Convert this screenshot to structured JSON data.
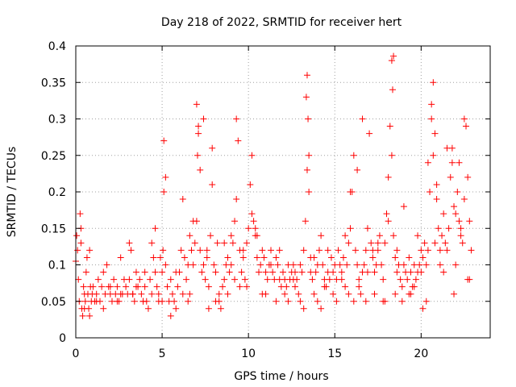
{
  "chart_data": {
    "type": "scatter",
    "title": "Day 218 of 2022, SRMTID for receiver hert",
    "xlabel": "GPS time / hours",
    "ylabel": "SRMTID / TECUs",
    "xlim": [
      0,
      24
    ],
    "ylim": [
      0,
      0.4
    ],
    "x_ticks": [
      0,
      5,
      10,
      15,
      20
    ],
    "x_tick_labels": [
      "0",
      "5",
      "10",
      "15",
      "20"
    ],
    "y_ticks": [
      0,
      0.05,
      0.1,
      0.15,
      0.2,
      0.25,
      0.3,
      0.35,
      0.4
    ],
    "y_tick_labels": [
      "0",
      "0.05",
      "0.1",
      "0.15",
      "0.2",
      "0.25",
      "0.3",
      "0.35",
      "0.4"
    ],
    "grid": true,
    "marker": "plus",
    "color": "#ff0000",
    "series": [
      {
        "x": [
          0.0,
          0.05,
          0.1,
          0.15,
          0.2,
          0.25,
          0.3,
          0.35,
          0.4,
          0.45,
          0.5,
          0.55,
          0.6,
          0.65,
          0.7,
          0.75,
          0.8,
          0.85,
          0.9,
          0.95,
          1.0,
          1.1,
          1.2,
          1.3,
          1.4,
          1.5,
          1.6,
          1.7,
          1.8,
          1.9,
          2.0,
          2.1,
          2.2,
          2.3,
          2.4,
          2.5,
          2.6,
          2.7,
          2.8,
          2.9,
          3.0,
          3.1,
          3.2,
          3.3,
          3.4,
          3.5,
          3.6,
          3.7,
          3.8,
          3.9,
          4.0,
          4.1,
          4.2,
          4.3,
          4.4,
          4.5,
          4.6,
          4.7,
          4.8,
          4.9,
          5.0,
          5.05,
          5.1,
          5.2,
          5.3,
          5.4,
          5.5,
          5.6,
          5.7,
          5.8,
          5.9,
          6.0,
          6.1,
          6.2,
          6.3,
          6.4,
          6.5,
          6.6,
          6.7,
          6.8,
          6.9,
          7.0,
          7.05,
          7.1,
          7.2,
          7.3,
          7.4,
          7.5,
          7.6,
          7.7,
          7.8,
          7.9,
          8.0,
          8.1,
          8.2,
          8.3,
          8.4,
          8.5,
          8.6,
          8.7,
          8.8,
          8.9,
          9.0,
          9.1,
          9.2,
          9.3,
          9.4,
          9.5,
          9.6,
          9.7,
          9.8,
          9.9,
          10.0,
          10.1,
          10.2,
          10.3,
          10.4,
          10.5,
          10.6,
          10.7,
          10.8,
          10.9,
          11.0,
          11.1,
          11.2,
          11.3,
          11.4,
          11.5,
          11.6,
          11.7,
          11.8,
          11.9,
          12.0,
          12.1,
          12.2,
          12.3,
          12.4,
          12.5,
          12.6,
          12.7,
          12.8,
          12.9,
          13.0,
          13.1,
          13.2,
          13.3,
          13.35,
          13.4,
          13.5,
          13.6,
          13.7,
          13.8,
          13.9,
          14.0,
          14.1,
          14.2,
          14.3,
          14.4,
          14.5,
          14.6,
          14.7,
          14.8,
          14.9,
          15.0,
          15.1,
          15.2,
          15.3,
          15.4,
          15.5,
          15.6,
          15.7,
          15.8,
          15.9,
          16.0,
          16.1,
          16.2,
          16.3,
          16.4,
          16.5,
          16.6,
          16.7,
          16.8,
          16.9,
          17.0,
          17.1,
          17.2,
          17.3,
          17.4,
          17.5,
          17.6,
          17.7,
          17.8,
          17.9,
          18.0,
          18.1,
          18.2,
          18.3,
          18.35,
          18.4,
          18.5,
          18.6,
          18.7,
          18.8,
          18.9,
          19.0,
          19.1,
          19.2,
          19.3,
          19.4,
          19.5,
          19.6,
          19.7,
          19.8,
          19.9,
          20.0,
          20.1,
          20.2,
          20.3,
          20.4,
          20.5,
          20.6,
          20.7,
          20.8,
          20.9,
          21.0,
          21.1,
          21.2,
          21.3,
          21.4,
          21.5,
          21.6,
          21.7,
          21.8,
          21.9,
          22.0,
          22.1,
          22.2,
          22.3,
          22.4,
          22.5,
          22.6,
          22.7,
          22.8,
          22.9,
          0.3,
          0.5,
          1.2,
          2.0,
          2.6,
          3.1,
          3.5,
          4.0,
          4.4,
          4.6,
          5.0,
          5.1,
          5.2,
          5.8,
          6.5,
          6.8,
          7.0,
          7.1,
          7.4,
          7.6,
          7.9,
          8.3,
          8.6,
          9.0,
          9.3,
          9.5,
          9.7,
          10.2,
          10.4,
          10.8,
          11.3,
          11.8,
          12.3,
          12.7,
          13.2,
          13.4,
          13.45,
          13.5,
          13.8,
          14.2,
          14.6,
          15.1,
          15.6,
          15.9,
          16.1,
          16.3,
          16.6,
          16.9,
          17.2,
          17.5,
          17.8,
          18.1,
          18.3,
          18.4,
          18.6,
          19.0,
          19.4,
          19.8,
          20.1,
          20.4,
          20.6,
          20.7,
          20.9,
          21.1,
          21.5,
          21.8,
          22.0,
          22.2,
          22.5,
          22.8,
          0.8,
          1.6,
          2.4,
          3.3,
          3.9,
          4.8,
          5.5,
          6.2,
          6.6,
          7.2,
          7.7,
          8.1,
          8.8,
          9.2,
          9.9,
          10.5,
          11.0,
          11.6,
          12.1,
          12.6,
          13.0,
          13.6,
          14.0,
          14.4,
          14.9,
          15.4,
          15.8,
          16.4,
          16.8,
          17.3,
          17.9,
          18.5,
          18.9,
          19.3,
          19.6,
          20.0,
          20.3,
          20.8,
          21.3,
          21.9,
          22.3,
          22.7
        ],
        "y": [
          0.105,
          0.14,
          0.12,
          0.08,
          0.05,
          0.17,
          0.13,
          0.04,
          0.03,
          0.07,
          0.06,
          0.05,
          0.09,
          0.11,
          0.06,
          0.04,
          0.12,
          0.07,
          0.05,
          0.06,
          0.07,
          0.05,
          0.06,
          0.08,
          0.05,
          0.07,
          0.09,
          0.06,
          0.1,
          0.07,
          0.06,
          0.05,
          0.08,
          0.06,
          0.07,
          0.05,
          0.11,
          0.06,
          0.08,
          0.07,
          0.06,
          0.08,
          0.12,
          0.06,
          0.05,
          0.09,
          0.07,
          0.08,
          0.06,
          0.05,
          0.07,
          0.05,
          0.04,
          0.08,
          0.13,
          0.11,
          0.09,
          0.07,
          0.06,
          0.11,
          0.09,
          0.12,
          0.2,
          0.1,
          0.07,
          0.05,
          0.08,
          0.06,
          0.05,
          0.04,
          0.07,
          0.09,
          0.12,
          0.19,
          0.11,
          0.08,
          0.05,
          0.14,
          0.12,
          0.1,
          0.13,
          0.16,
          0.25,
          0.28,
          0.12,
          0.09,
          0.1,
          0.08,
          0.11,
          0.07,
          0.14,
          0.26,
          0.1,
          0.09,
          0.13,
          0.06,
          0.04,
          0.07,
          0.08,
          0.1,
          0.11,
          0.09,
          0.1,
          0.13,
          0.16,
          0.19,
          0.27,
          0.12,
          0.09,
          0.11,
          0.08,
          0.13,
          0.15,
          0.21,
          0.17,
          0.16,
          0.15,
          0.11,
          0.09,
          0.1,
          0.12,
          0.11,
          0.09,
          0.08,
          0.1,
          0.12,
          0.09,
          0.08,
          0.11,
          0.1,
          0.08,
          0.07,
          0.09,
          0.08,
          0.07,
          0.1,
          0.08,
          0.09,
          0.1,
          0.07,
          0.08,
          0.06,
          0.1,
          0.09,
          0.12,
          0.16,
          0.33,
          0.23,
          0.2,
          0.11,
          0.08,
          0.06,
          0.09,
          0.1,
          0.12,
          0.14,
          0.1,
          0.08,
          0.07,
          0.09,
          0.08,
          0.11,
          0.09,
          0.1,
          0.08,
          0.12,
          0.1,
          0.09,
          0.11,
          0.07,
          0.1,
          0.13,
          0.15,
          0.2,
          0.25,
          0.12,
          0.1,
          0.08,
          0.06,
          0.09,
          0.1,
          0.12,
          0.15,
          0.28,
          0.13,
          0.11,
          0.09,
          0.1,
          0.12,
          0.14,
          0.1,
          0.08,
          0.13,
          0.17,
          0.22,
          0.29,
          0.38,
          0.34,
          0.14,
          0.11,
          0.09,
          0.1,
          0.08,
          0.07,
          0.1,
          0.09,
          0.08,
          0.11,
          0.09,
          0.07,
          0.1,
          0.08,
          0.09,
          0.1,
          0.12,
          0.11,
          0.13,
          0.1,
          0.12,
          0.2,
          0.3,
          0.35,
          0.28,
          0.21,
          0.15,
          0.12,
          0.14,
          0.17,
          0.13,
          0.12,
          0.15,
          0.22,
          0.26,
          0.18,
          0.17,
          0.2,
          0.16,
          0.15,
          0.13,
          0.19,
          0.29,
          0.22,
          0.16,
          0.12,
          0.15,
          0.04,
          0.05,
          0.07,
          0.06,
          0.13,
          0.07,
          0.09,
          0.06,
          0.15,
          0.05,
          0.27,
          0.22,
          0.09,
          0.1,
          0.16,
          0.32,
          0.29,
          0.3,
          0.12,
          0.21,
          0.05,
          0.13,
          0.14,
          0.3,
          0.07,
          0.12,
          0.25,
          0.14,
          0.06,
          0.1,
          0.12,
          0.05,
          0.09,
          0.04,
          0.36,
          0.3,
          0.25,
          0.11,
          0.04,
          0.12,
          0.05,
          0.14,
          0.2,
          0.05,
          0.23,
          0.3,
          0.09,
          0.12,
          0.13,
          0.05,
          0.16,
          0.25,
          0.386,
          0.12,
          0.18,
          0.06,
          0.14,
          0.04,
          0.24,
          0.32,
          0.25,
          0.19,
          0.1,
          0.26,
          0.24,
          0.1,
          0.24,
          0.3,
          0.08,
          0.03,
          0.04,
          0.05,
          0.06,
          0.05,
          0.05,
          0.03,
          0.06,
          0.06,
          0.23,
          0.04,
          0.05,
          0.06,
          0.08,
          0.07,
          0.14,
          0.06,
          0.05,
          0.06,
          0.08,
          0.05,
          0.09,
          0.05,
          0.07,
          0.06,
          0.08,
          0.06,
          0.07,
          0.05,
          0.06,
          0.05,
          0.06,
          0.05,
          0.06,
          0.07,
          0.09,
          0.05,
          0.13,
          0.09,
          0.06,
          0.14,
          0.08
        ]
      }
    ]
  }
}
